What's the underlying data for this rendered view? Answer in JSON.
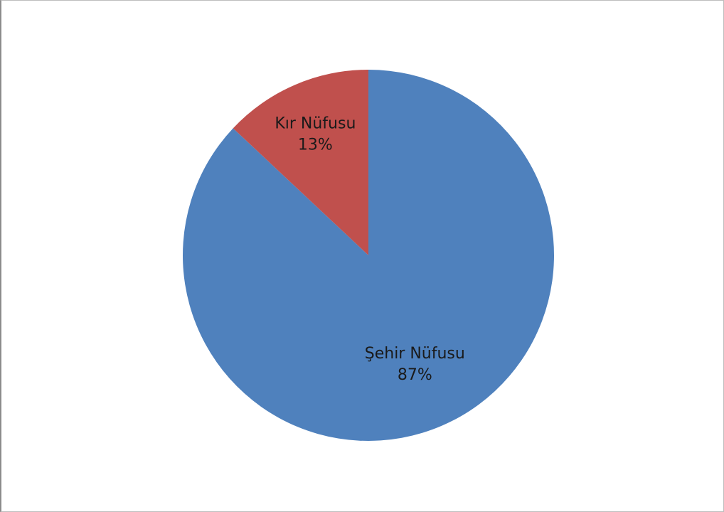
{
  "chart_data": {
    "type": "pie",
    "title": "",
    "slices": [
      {
        "label": "Şehir Nüfusu",
        "value": 87,
        "value_label": "87%",
        "color": "#4f81bd"
      },
      {
        "label": "Kır Nüfusu",
        "value": 13,
        "value_label": "13%",
        "color": "#c0504d"
      }
    ],
    "start_angle": "12 o'clock",
    "direction": "clockwise",
    "legend": "none",
    "data_labels": "inside slice: category name and percentage"
  }
}
